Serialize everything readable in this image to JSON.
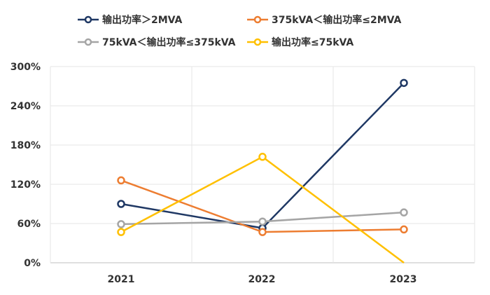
{
  "chart_data": {
    "type": "line",
    "categories": [
      "2021",
      "2022",
      "2023"
    ],
    "ylim": [
      0,
      300
    ],
    "y_ticks": [
      0,
      60,
      120,
      180,
      240,
      300
    ],
    "y_tick_labels": [
      "0%",
      "60%",
      "120%",
      "180%",
      "240%",
      "300%"
    ],
    "grid": "horizontal and vertical, light gray",
    "legend_position": "top",
    "series": [
      {
        "name": "输出功率＞2MVA",
        "color": "#1F3864",
        "values": [
          90,
          53,
          275
        ]
      },
      {
        "name": "375kVA＜输出功率≤2MVA",
        "color": "#ED7D31",
        "values": [
          126,
          47,
          51
        ]
      },
      {
        "name": "75kVA＜输出功率≤375kVA",
        "color": "#A5A5A5",
        "values": [
          59,
          63,
          77
        ]
      },
      {
        "name": "输出功率≤75kVA",
        "color": "#FFC000",
        "values": [
          47,
          162,
          0
        ]
      }
    ]
  }
}
